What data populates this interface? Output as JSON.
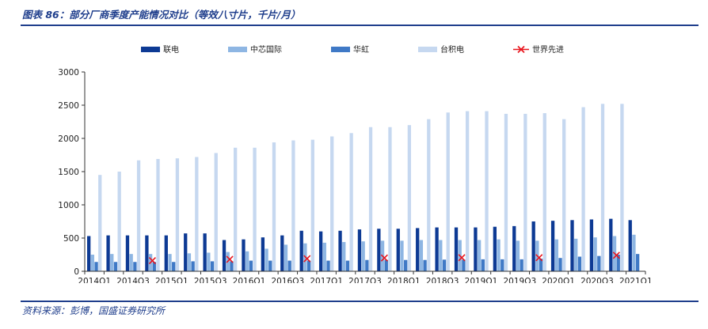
{
  "header": {
    "title": "图表 86：部分厂商季度产能情况对比（等效八寸片，千片/月）"
  },
  "footer": {
    "source": "资料来源：彭博，国盛证券研究所"
  },
  "chart_data": {
    "type": "bar",
    "title": "图表 86：部分厂商季度产能情况对比（等效八寸片，千片/月）",
    "xlabel": "",
    "ylabel": "",
    "ylim": [
      0,
      3000
    ],
    "yticks": [
      0,
      500,
      1000,
      1500,
      2000,
      2500,
      3000
    ],
    "grid": false,
    "legend_position": "top",
    "categories": [
      "2014Q1",
      "2014Q2",
      "2014Q3",
      "2014Q4",
      "2015Q1",
      "2015Q2",
      "2015Q3",
      "2015Q4",
      "2016Q1",
      "2016Q2",
      "2016Q3",
      "2016Q4",
      "2017Q1",
      "2017Q2",
      "2017Q3",
      "2017Q4",
      "2018Q1",
      "2018Q2",
      "2018Q3",
      "2018Q4",
      "2019Q1",
      "2019Q2",
      "2019Q3",
      "2019Q4",
      "2020Q1",
      "2020Q2",
      "2020Q3",
      "2020Q4",
      "2021Q1"
    ],
    "tick_labels": [
      "2014Q1",
      "",
      "2014Q3",
      "",
      "2015Q1",
      "",
      "2015Q3",
      "",
      "2016Q1",
      "",
      "2016Q3",
      "",
      "2017Q1",
      "",
      "2017Q3",
      "",
      "2018Q1",
      "",
      "2018Q3",
      "",
      "2019Q1",
      "",
      "2019Q3",
      "",
      "2020Q1",
      "",
      "2020Q3",
      "",
      "2021Q1"
    ],
    "series": [
      {
        "name": "联电",
        "color": "#0d3a94",
        "values": [
          530,
          540,
          540,
          540,
          540,
          570,
          570,
          470,
          480,
          510,
          540,
          610,
          600,
          610,
          630,
          640,
          640,
          650,
          660,
          660,
          660,
          670,
          680,
          750,
          760,
          770,
          780,
          790,
          770
        ]
      },
      {
        "name": "中芯国际",
        "color": "#8eb6e3",
        "values": [
          250,
          260,
          260,
          260,
          260,
          270,
          280,
          290,
          300,
          340,
          400,
          420,
          430,
          440,
          450,
          460,
          460,
          470,
          470,
          470,
          470,
          480,
          460,
          460,
          480,
          490,
          510,
          530,
          550
        ]
      },
      {
        "name": "华虹",
        "color": "#3f79c6",
        "values": [
          140,
          140,
          140,
          140,
          140,
          150,
          150,
          150,
          160,
          160,
          160,
          160,
          160,
          160,
          170,
          170,
          170,
          170,
          175,
          175,
          180,
          180,
          180,
          190,
          200,
          220,
          230,
          250,
          260
        ]
      },
      {
        "name": "台积电",
        "color": "#c6d8f0",
        "values": [
          1450,
          1500,
          1670,
          1690,
          1700,
          1720,
          1780,
          1860,
          1860,
          1940,
          1970,
          1980,
          2030,
          2080,
          2170,
          2170,
          2200,
          2290,
          2390,
          2410,
          2410,
          2370,
          2370,
          2380,
          2290,
          2470,
          2520,
          2520,
          null
        ]
      }
    ],
    "markers": {
      "name": "世界先进",
      "color": "#e8141c",
      "symbol": "x",
      "points": [
        {
          "category": "2014Q4",
          "value": 160
        },
        {
          "category": "2015Q4",
          "value": 180
        },
        {
          "category": "2016Q4",
          "value": 190
        },
        {
          "category": "2017Q4",
          "value": 200
        },
        {
          "category": "2018Q4",
          "value": 205
        },
        {
          "category": "2019Q4",
          "value": 205
        },
        {
          "category": "2020Q4",
          "value": 240
        }
      ]
    }
  }
}
